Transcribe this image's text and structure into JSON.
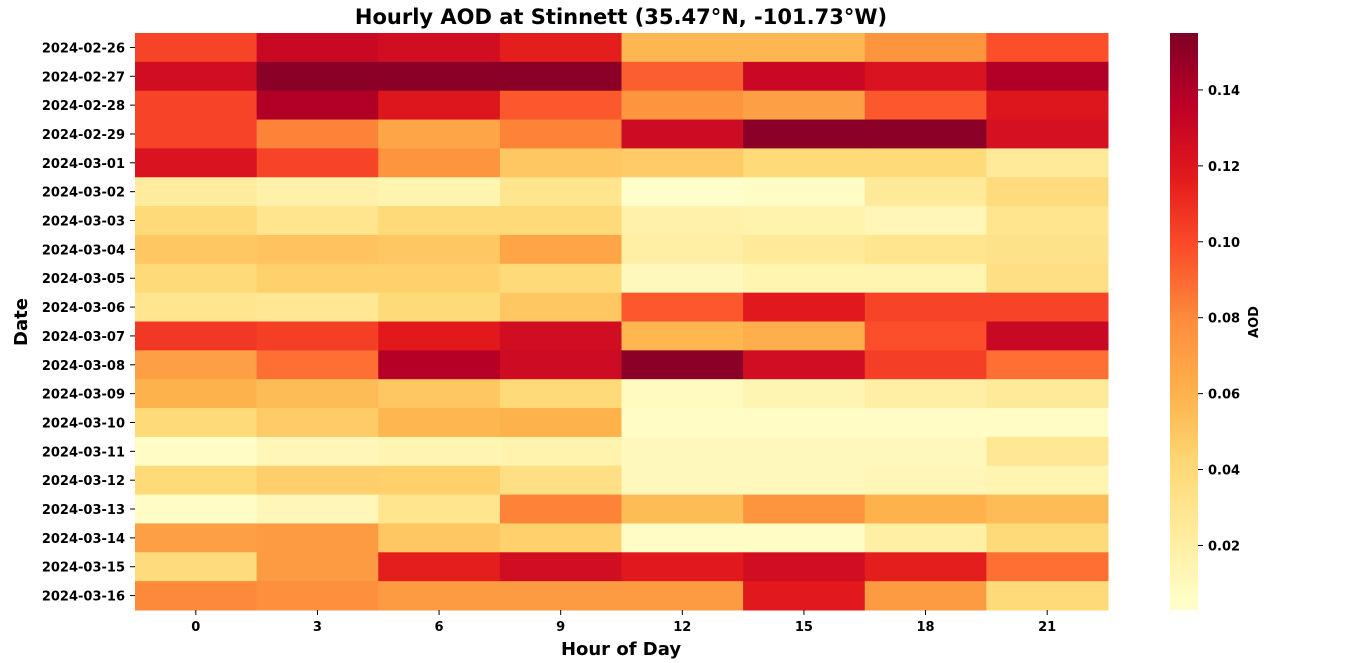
{
  "chart_data": {
    "type": "heatmap",
    "title": "Hourly AOD at Stinnett (35.47°N, -101.73°W)",
    "xlabel": "Hour of Day",
    "ylabel": "Date",
    "x": [
      "0",
      "3",
      "6",
      "9",
      "12",
      "15",
      "18",
      "21"
    ],
    "y": [
      "2024-02-26",
      "2024-02-27",
      "2024-02-28",
      "2024-02-29",
      "2024-03-01",
      "2024-03-02",
      "2024-03-03",
      "2024-03-04",
      "2024-03-05",
      "2024-03-06",
      "2024-03-07",
      "2024-03-08",
      "2024-03-09",
      "2024-03-10",
      "2024-03-11",
      "2024-03-12",
      "2024-03-13",
      "2024-03-14",
      "2024-03-15",
      "2024-03-16"
    ],
    "values": [
      [
        0.102,
        0.13,
        0.126,
        0.116,
        0.058,
        0.058,
        0.075,
        0.098
      ],
      [
        0.126,
        0.152,
        0.152,
        0.152,
        0.093,
        0.13,
        0.122,
        0.14
      ],
      [
        0.102,
        0.14,
        0.12,
        0.095,
        0.075,
        0.07,
        0.095,
        0.12
      ],
      [
        0.102,
        0.082,
        0.066,
        0.082,
        0.128,
        0.152,
        0.152,
        0.124
      ],
      [
        0.122,
        0.102,
        0.075,
        0.05,
        0.048,
        0.04,
        0.04,
        0.025
      ],
      [
        0.023,
        0.018,
        0.015,
        0.03,
        0.004,
        0.006,
        0.025,
        0.038
      ],
      [
        0.04,
        0.03,
        0.04,
        0.04,
        0.018,
        0.016,
        0.012,
        0.03
      ],
      [
        0.05,
        0.052,
        0.05,
        0.066,
        0.02,
        0.025,
        0.03,
        0.032
      ],
      [
        0.04,
        0.045,
        0.045,
        0.04,
        0.01,
        0.015,
        0.015,
        0.035
      ],
      [
        0.03,
        0.028,
        0.04,
        0.05,
        0.095,
        0.118,
        0.102,
        0.102
      ],
      [
        0.106,
        0.104,
        0.118,
        0.126,
        0.058,
        0.062,
        0.098,
        0.13
      ],
      [
        0.07,
        0.088,
        0.138,
        0.128,
        0.152,
        0.126,
        0.104,
        0.088
      ],
      [
        0.06,
        0.055,
        0.05,
        0.04,
        0.008,
        0.014,
        0.02,
        0.025
      ],
      [
        0.04,
        0.048,
        0.058,
        0.06,
        0.006,
        0.006,
        0.006,
        0.006
      ],
      [
        0.006,
        0.012,
        0.014,
        0.016,
        0.01,
        0.01,
        0.01,
        0.028
      ],
      [
        0.04,
        0.046,
        0.045,
        0.035,
        0.01,
        0.01,
        0.012,
        0.015
      ],
      [
        0.006,
        0.012,
        0.03,
        0.082,
        0.055,
        0.075,
        0.06,
        0.055
      ],
      [
        0.07,
        0.072,
        0.05,
        0.045,
        0.006,
        0.006,
        0.02,
        0.04
      ],
      [
        0.038,
        0.072,
        0.116,
        0.126,
        0.118,
        0.126,
        0.116,
        0.088
      ],
      [
        0.08,
        0.078,
        0.072,
        0.072,
        0.072,
        0.118,
        0.072,
        0.04
      ]
    ],
    "colormap": "YlOrRd",
    "vmin": 0.003,
    "vmax": 0.155,
    "colorbar": {
      "label": "AOD",
      "ticks": [
        "0.02",
        "0.04",
        "0.06",
        "0.08",
        "0.10",
        "0.12",
        "0.14"
      ],
      "placement": "right"
    },
    "grid": false
  }
}
